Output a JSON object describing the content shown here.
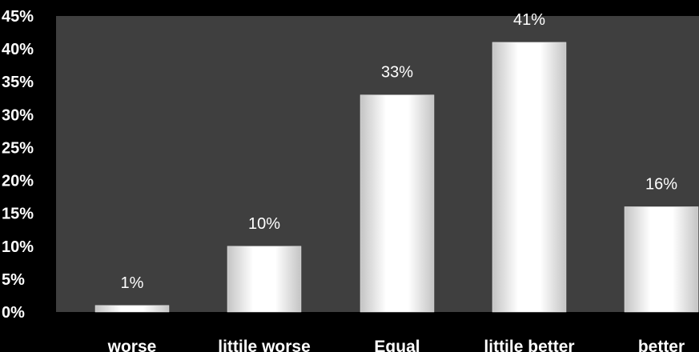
{
  "chart_data": {
    "type": "bar",
    "categories": [
      "worse",
      "littile worse",
      "Equal",
      "littile better",
      "better"
    ],
    "values": [
      1,
      10,
      33,
      41,
      16
    ],
    "data_labels": [
      "1%",
      "10%",
      "33%",
      "41%",
      "16%"
    ],
    "title": "",
    "xlabel": "",
    "ylabel": "",
    "ylim": [
      0,
      45
    ],
    "yticks": [
      "0%",
      "5%",
      "10%",
      "15%",
      "20%",
      "25%",
      "30%",
      "35%",
      "40%",
      "45%"
    ],
    "grid": false,
    "legend": "none",
    "colors": {
      "page_background": "#000000",
      "plot_background": "#3f3f3f",
      "bar_light": "#ffffff",
      "bar_shade": "#c4c4c4",
      "text": "#ffffff"
    }
  }
}
